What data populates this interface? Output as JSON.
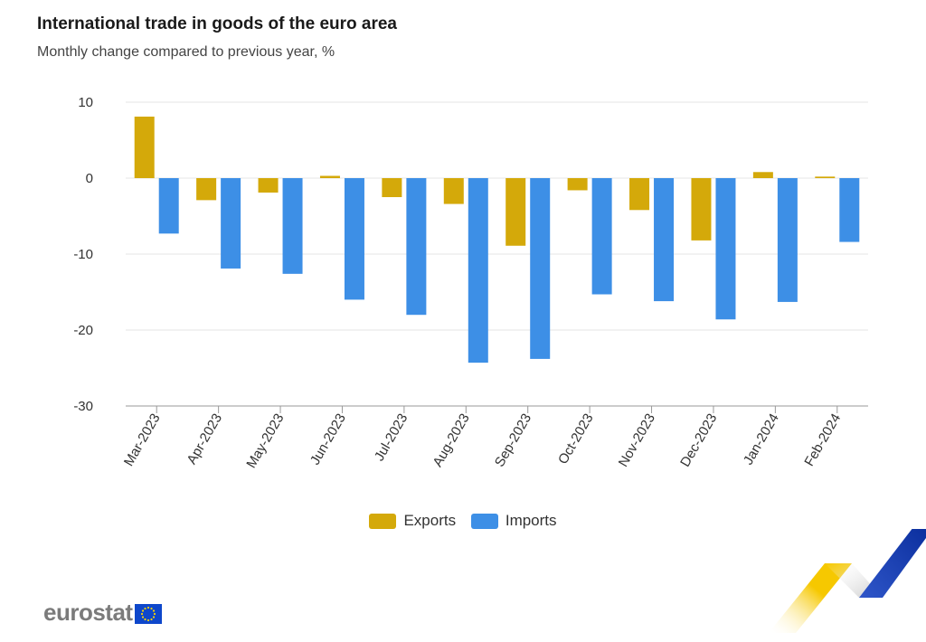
{
  "header": {
    "title": "International trade in goods of the euro area",
    "subtitle": "Monthly change compared to previous year, %"
  },
  "brand": {
    "logo_text": "eurostat"
  },
  "colors": {
    "exports": "#d4a90a",
    "imports": "#3d8fe6",
    "grid": "#e6e6e6",
    "axis": "#999999"
  },
  "chart_data": {
    "type": "bar",
    "title": "International trade in goods of the euro area",
    "subtitle": "Monthly change compared to previous year, %",
    "xlabel": "",
    "ylabel": "",
    "ylim": [
      -30,
      10
    ],
    "yticks": [
      10,
      0,
      -10,
      -20,
      -30
    ],
    "grid": true,
    "legend_position": "bottom",
    "categories": [
      "Mar-2023",
      "Apr-2023",
      "May-2023",
      "Jun-2023",
      "Jul-2023",
      "Aug-2023",
      "Sep-2023",
      "Oct-2023",
      "Nov-2023",
      "Dec-2023",
      "Jan-2024",
      "Feb-2024"
    ],
    "series": [
      {
        "name": "Exports",
        "values": [
          8.1,
          -2.9,
          -1.9,
          0.3,
          -2.5,
          -3.4,
          -8.9,
          -1.6,
          -4.2,
          -8.2,
          0.8,
          0.2
        ]
      },
      {
        "name": "Imports",
        "values": [
          -7.3,
          -11.9,
          -12.6,
          -16.0,
          -18.0,
          -24.3,
          -23.8,
          -15.3,
          -16.2,
          -18.6,
          -16.3,
          -8.4
        ]
      }
    ]
  }
}
